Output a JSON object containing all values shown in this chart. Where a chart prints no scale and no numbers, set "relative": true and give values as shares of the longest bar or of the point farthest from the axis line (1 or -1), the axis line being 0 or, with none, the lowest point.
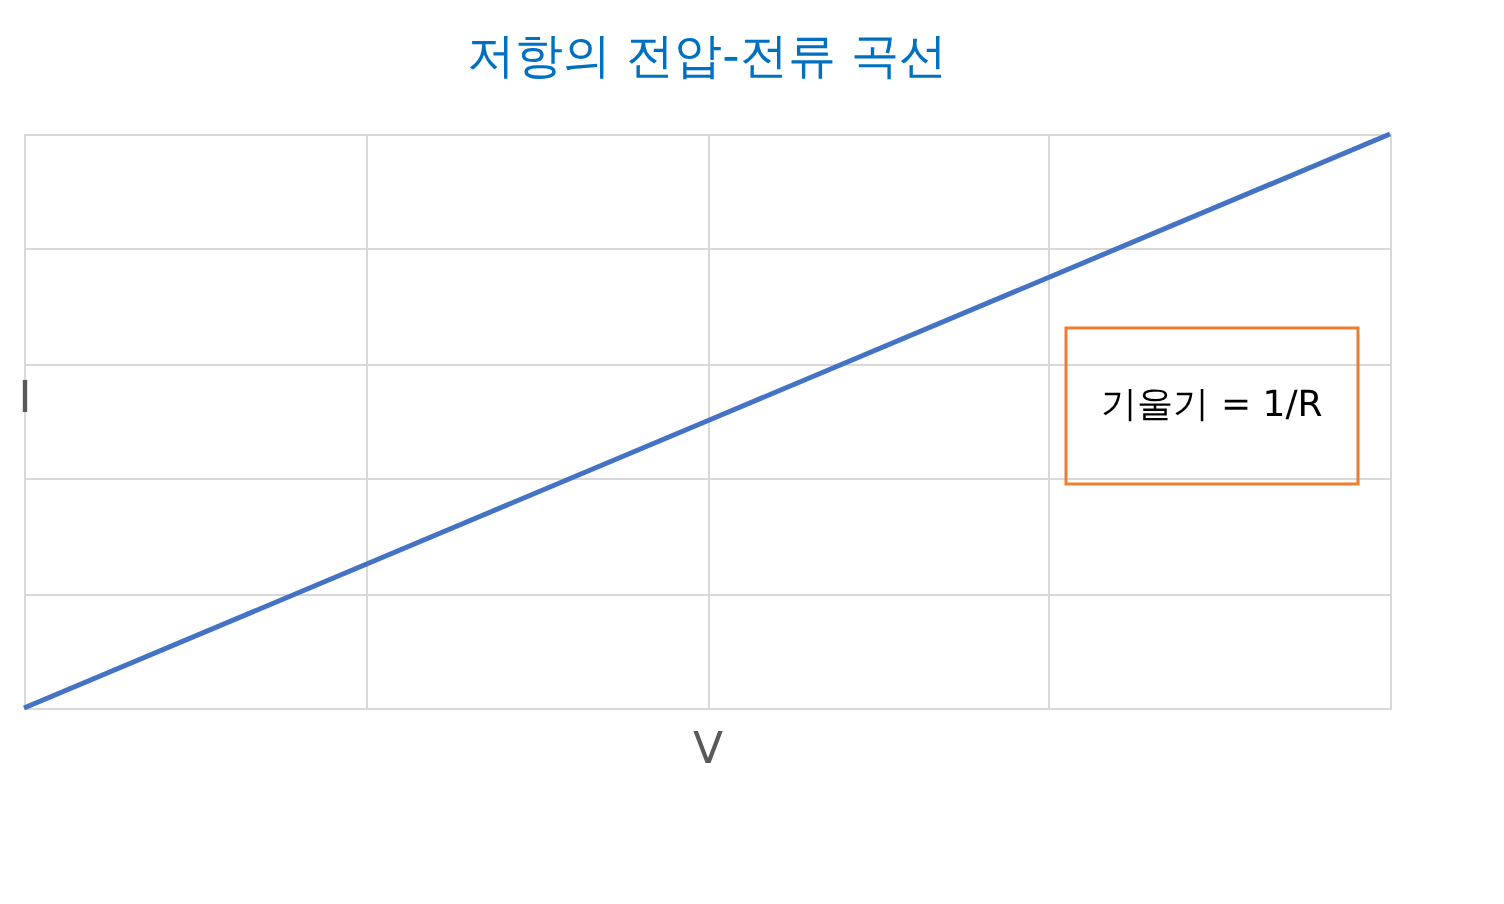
{
  "chart_data": {
    "type": "line",
    "title": "저항의 전압-전류 곡선",
    "xlabel": "V",
    "ylabel": "I",
    "categories": [
      null,
      null,
      null,
      null,
      null
    ],
    "series": [
      {
        "color": "#4472c4",
        "values": [
          0,
          0.25,
          0.5,
          0.75,
          1
        ]
      }
    ],
    "relative": true,
    "grid": true,
    "marker": "none",
    "line_style": "solid",
    "annotations": [
      "기울기 = 1/R"
    ]
  }
}
